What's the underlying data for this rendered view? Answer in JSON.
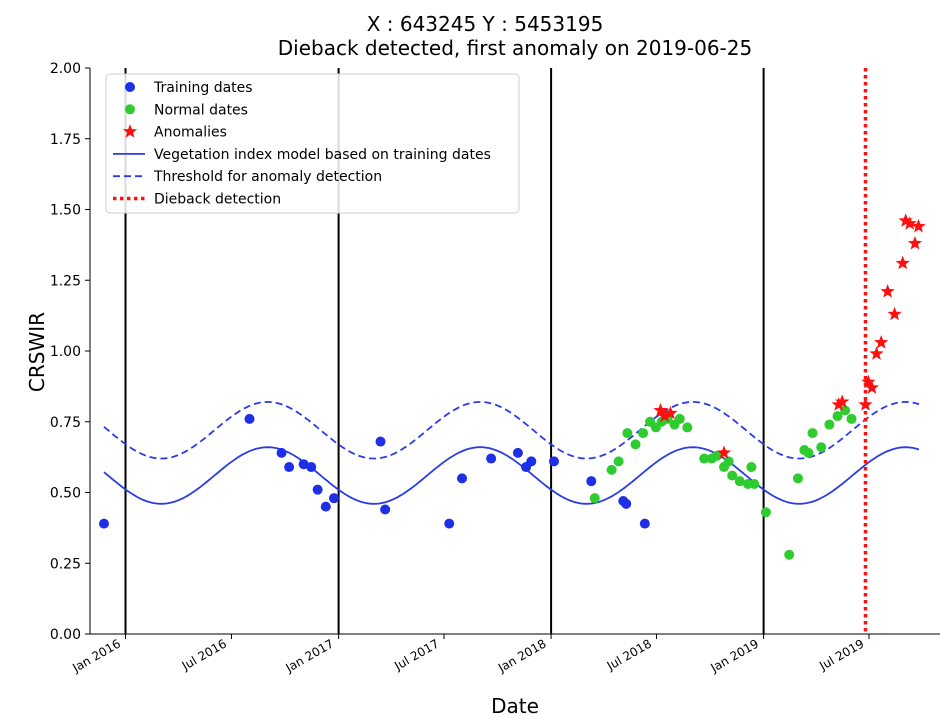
{
  "chart_data": {
    "type": "scatter",
    "title_line1": "X : 643245     Y : 5453195",
    "title_line2": "Dieback detected, first anomaly on 2019-06-25",
    "xlabel": "Date",
    "ylabel": "CRSWIR",
    "ylim": [
      0,
      2.0
    ],
    "xlim": [
      "2015-11-01",
      "2019-10-31"
    ],
    "y_ticks": [
      "0.00",
      "0.25",
      "0.50",
      "0.75",
      "1.00",
      "1.25",
      "1.50",
      "1.75",
      "2.00"
    ],
    "x_ticks": [
      "Jan 2016",
      "Jul 2016",
      "Jan 2017",
      "Jul 2017",
      "Jan 2018",
      "Jul 2018",
      "Jan 2019",
      "Jul 2019"
    ],
    "x_tick_dates": [
      "2016-01-01",
      "2016-07-01",
      "2017-01-01",
      "2017-07-01",
      "2018-01-01",
      "2018-07-01",
      "2019-01-01",
      "2019-07-01"
    ],
    "grid": false,
    "legend_position": "upper-left",
    "year_separators": [
      "2016-01-01",
      "2017-01-01",
      "2018-01-01",
      "2019-01-01"
    ],
    "dieback_detection_date": "2019-06-25",
    "model": {
      "mean": 0.56,
      "amplitude": 0.1,
      "peak_date": "2016-09-01",
      "threshold_offset": 0.16,
      "start": "2015-11-25",
      "end": "2019-09-25"
    },
    "colors": {
      "training": "#1f2fe8",
      "normal": "#2ecc2e",
      "anomaly": "#ff1010",
      "model": "#2b3be8",
      "dieback": "#ff1010",
      "separator": "#000000"
    },
    "legend": [
      {
        "label": "Training dates",
        "marker": "dot",
        "color": "#1f2fe8"
      },
      {
        "label": "Normal dates",
        "marker": "dot",
        "color": "#2ecc2e"
      },
      {
        "label": "Anomalies",
        "marker": "star",
        "color": "#ff1010"
      },
      {
        "label": "Vegetation index model based on training dates",
        "marker": "solid",
        "color": "#2b3be8"
      },
      {
        "label": "Threshold for anomaly detection",
        "marker": "dashed",
        "color": "#2b3be8"
      },
      {
        "label": "Dieback detection",
        "marker": "dotted",
        "color": "#ff1010"
      }
    ],
    "series": [
      {
        "name": "Training dates",
        "points": [
          [
            "2015-11-25",
            0.39
          ],
          [
            "2016-08-01",
            0.76
          ],
          [
            "2016-09-25",
            0.64
          ],
          [
            "2016-10-08",
            0.59
          ],
          [
            "2016-11-02",
            0.6
          ],
          [
            "2016-11-15",
            0.59
          ],
          [
            "2016-11-26",
            0.51
          ],
          [
            "2016-12-10",
            0.45
          ],
          [
            "2016-12-24",
            0.48
          ],
          [
            "2017-03-14",
            0.68
          ],
          [
            "2017-03-22",
            0.44
          ],
          [
            "2017-07-10",
            0.39
          ],
          [
            "2017-08-01",
            0.55
          ],
          [
            "2017-09-20",
            0.62
          ],
          [
            "2017-11-05",
            0.64
          ],
          [
            "2017-11-19",
            0.59
          ],
          [
            "2017-11-28",
            0.61
          ],
          [
            "2018-01-06",
            0.61
          ],
          [
            "2018-03-11",
            0.54
          ],
          [
            "2018-05-05",
            0.47
          ],
          [
            "2018-05-10",
            0.46
          ],
          [
            "2018-06-11",
            0.39
          ]
        ]
      },
      {
        "name": "Normal dates",
        "points": [
          [
            "2018-03-17",
            0.48
          ],
          [
            "2018-04-15",
            0.58
          ],
          [
            "2018-04-27",
            0.61
          ],
          [
            "2018-05-12",
            0.71
          ],
          [
            "2018-05-26",
            0.67
          ],
          [
            "2018-06-08",
            0.71
          ],
          [
            "2018-06-20",
            0.75
          ],
          [
            "2018-06-30",
            0.73
          ],
          [
            "2018-07-10",
            0.75
          ],
          [
            "2018-07-20",
            0.76
          ],
          [
            "2018-08-01",
            0.74
          ],
          [
            "2018-08-10",
            0.76
          ],
          [
            "2018-08-23",
            0.73
          ],
          [
            "2018-09-21",
            0.62
          ],
          [
            "2018-10-04",
            0.62
          ],
          [
            "2018-10-13",
            0.63
          ],
          [
            "2018-10-25",
            0.59
          ],
          [
            "2018-11-02",
            0.61
          ],
          [
            "2018-11-08",
            0.56
          ],
          [
            "2018-11-21",
            0.54
          ],
          [
            "2018-12-05",
            0.53
          ],
          [
            "2018-12-11",
            0.59
          ],
          [
            "2018-12-16",
            0.53
          ],
          [
            "2019-01-05",
            0.43
          ],
          [
            "2019-02-14",
            0.28
          ],
          [
            "2019-03-01",
            0.55
          ],
          [
            "2019-03-12",
            0.65
          ],
          [
            "2019-03-19",
            0.64
          ],
          [
            "2019-03-26",
            0.71
          ],
          [
            "2019-04-10",
            0.66
          ],
          [
            "2019-04-24",
            0.74
          ],
          [
            "2019-05-08",
            0.77
          ],
          [
            "2019-05-21",
            0.79
          ],
          [
            "2019-06-01",
            0.76
          ]
        ]
      },
      {
        "name": "Anomalies",
        "points": [
          [
            "2018-07-08",
            0.79
          ],
          [
            "2018-07-15",
            0.77
          ],
          [
            "2018-07-25",
            0.78
          ],
          [
            "2018-10-25",
            0.64
          ],
          [
            "2019-05-10",
            0.81
          ],
          [
            "2019-05-16",
            0.82
          ],
          [
            "2019-06-25",
            0.81
          ],
          [
            "2019-06-30",
            0.89
          ],
          [
            "2019-07-06",
            0.87
          ],
          [
            "2019-07-14",
            0.99
          ],
          [
            "2019-07-22",
            1.03
          ],
          [
            "2019-08-02",
            1.21
          ],
          [
            "2019-08-14",
            1.13
          ],
          [
            "2019-08-28",
            1.31
          ],
          [
            "2019-09-02",
            1.46
          ],
          [
            "2019-09-09",
            1.45
          ],
          [
            "2019-09-18",
            1.38
          ],
          [
            "2019-09-24",
            1.44
          ]
        ]
      }
    ]
  }
}
